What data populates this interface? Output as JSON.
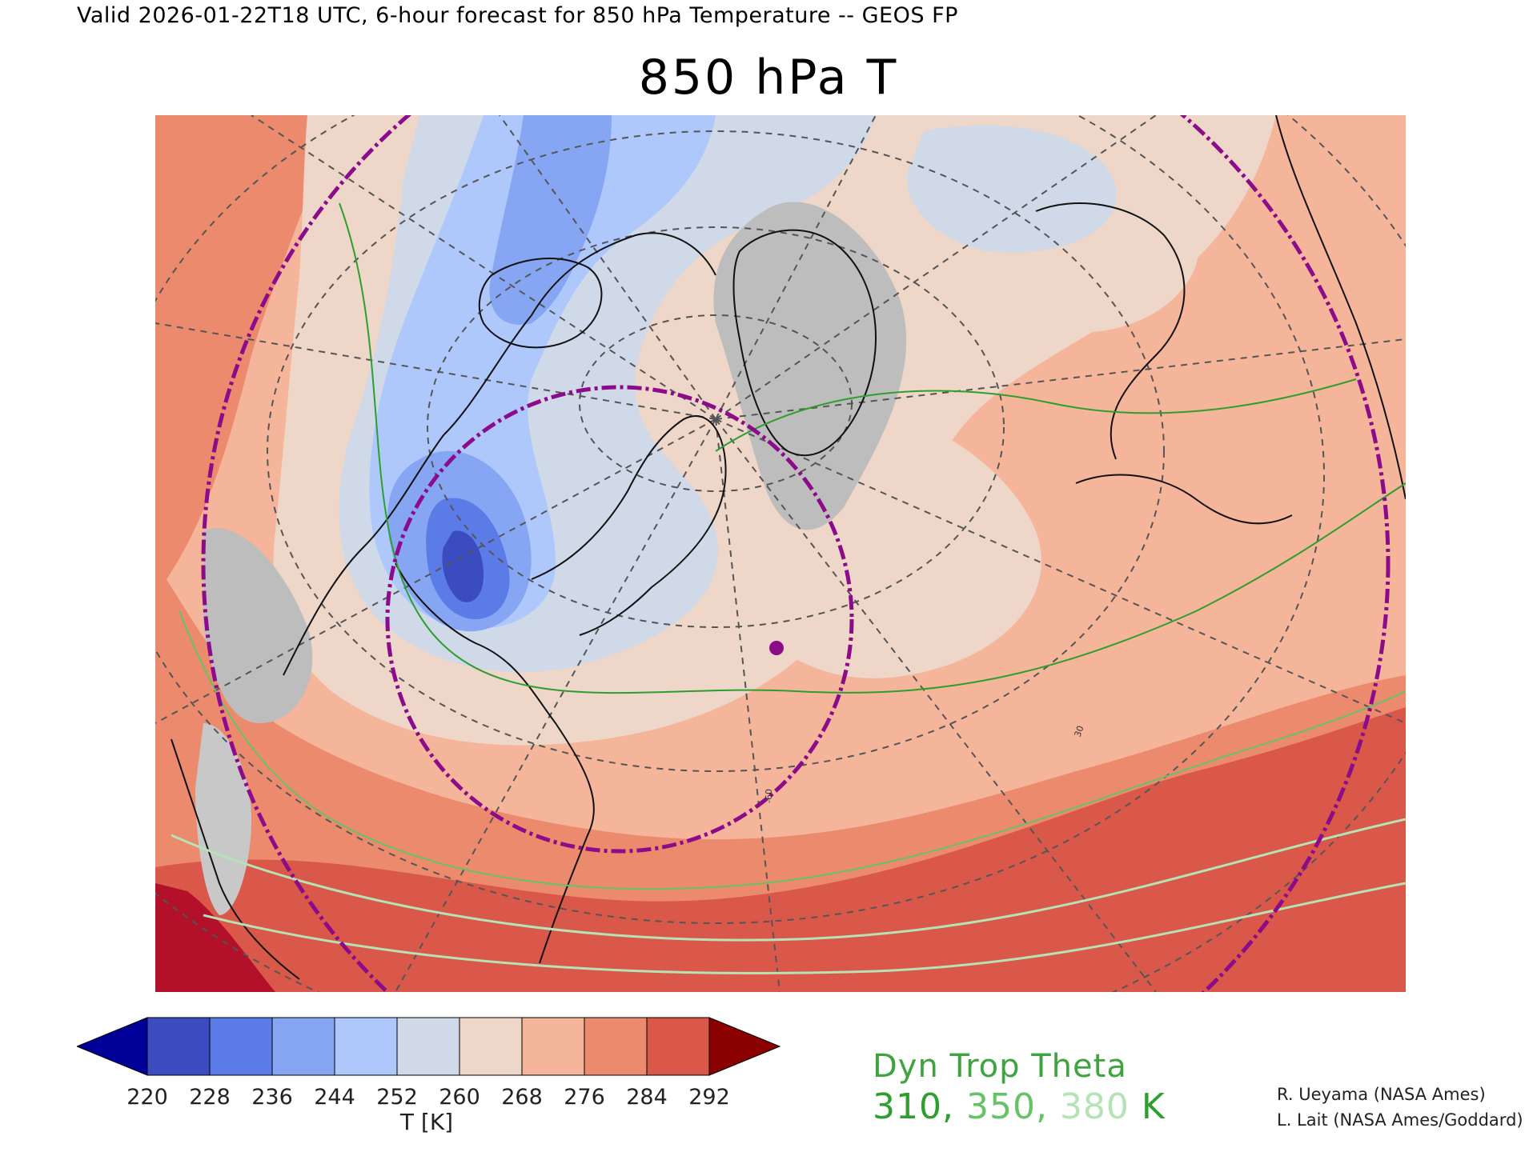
{
  "header": {
    "caption": "Valid 2026-01-22T18 UTC, 6-hour forecast for 850 hPa Temperature -- GEOS FP",
    "title": "850 hPa T"
  },
  "colorbar": {
    "ticks": [
      "220",
      "228",
      "236",
      "244",
      "252",
      "260",
      "268",
      "276",
      "284",
      "292"
    ],
    "colors": [
      "#000099",
      "#3b4cc0",
      "#5b7be6",
      "#86a6f4",
      "#aec8fb",
      "#d0d9e8",
      "#eed6c8",
      "#f5b59a",
      "#ec8a6e",
      "#d9584a",
      "#8b0000"
    ],
    "unit_label": "T [K]"
  },
  "overlay_legend": {
    "title": "Dyn Trop Theta",
    "values": [
      "310",
      "350",
      "380"
    ],
    "separator": ", ",
    "unit": " K",
    "colors": [
      "#2e9e2e",
      "#66c266",
      "#b5e3b5"
    ]
  },
  "credits": [
    "R. Ueyama (NASA Ames)",
    "L. Lait (NASA Ames/Goddard)"
  ],
  "map_labels": {
    "lon_label": "-60",
    "lat_label": "30"
  },
  "palette": {
    "land_outline": "#111111",
    "grid": "#555555",
    "circle": "#8b0b8b",
    "point": "#8b0b8b",
    "missing": "#bdbdbd"
  }
}
